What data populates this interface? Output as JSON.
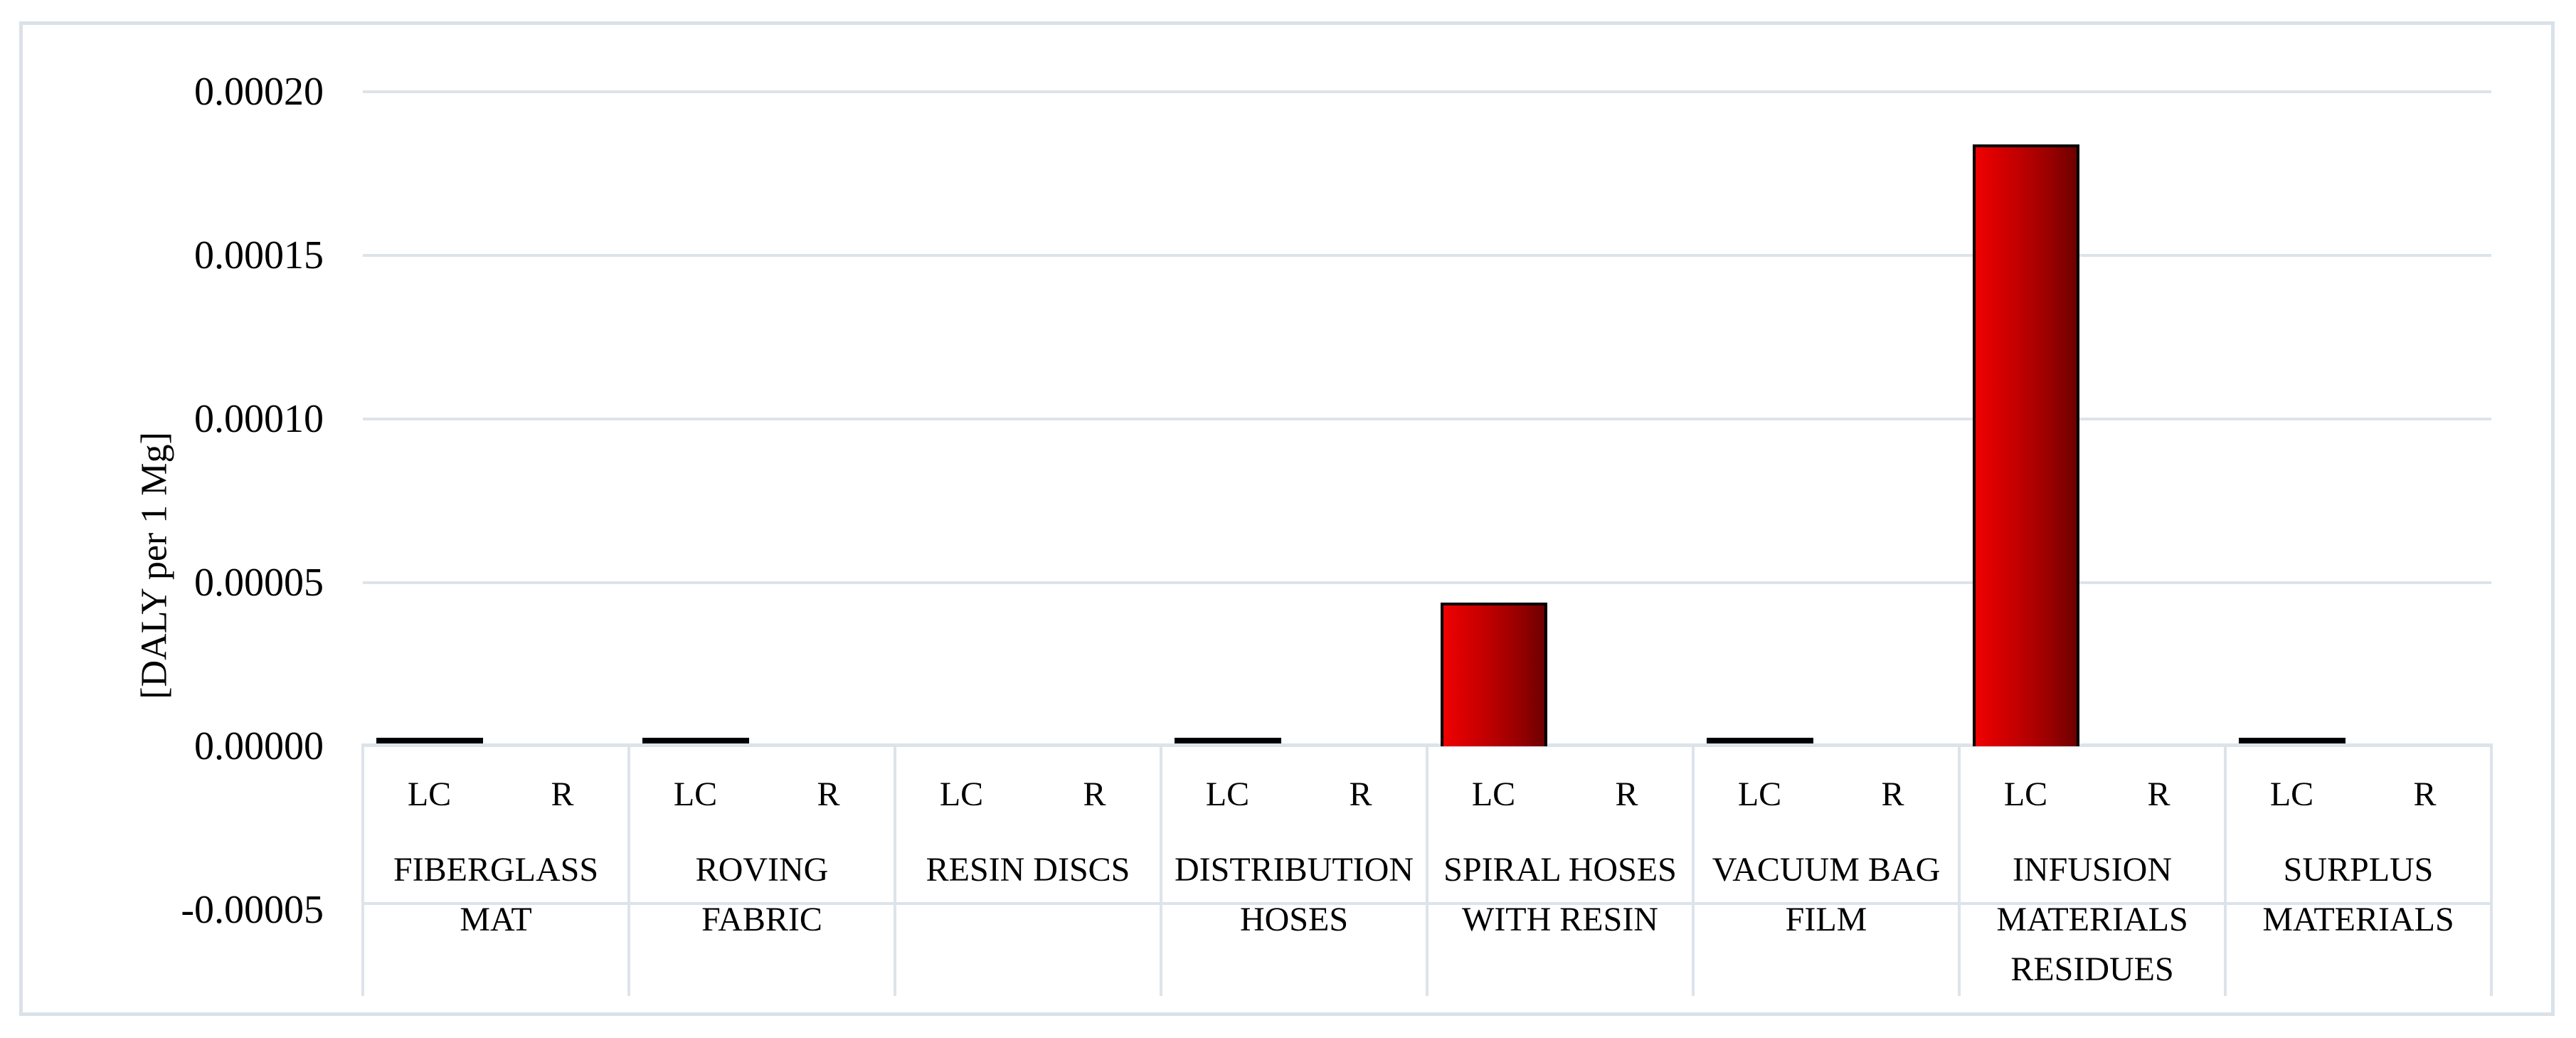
{
  "y_axis": {
    "title": "[DALY per 1 Mg]",
    "ticks": [
      {
        "label": "0.00020",
        "value": 0.0002
      },
      {
        "label": "0.00015",
        "value": 0.00015
      },
      {
        "label": "0.00010",
        "value": 0.0001
      },
      {
        "label": "0.00005",
        "value": 5e-05
      },
      {
        "label": "0.00000",
        "value": 0.0
      },
      {
        "label": "-0.00005",
        "value": -5e-05
      }
    ]
  },
  "x_axis": {
    "sub_labels": [
      "LC",
      "R"
    ],
    "categories": [
      {
        "name": "FIBERGLASS MAT",
        "lines": [
          "FIBERGLASS",
          "MAT"
        ]
      },
      {
        "name": "ROVING FABRIC",
        "lines": [
          "ROVING",
          "FABRIC"
        ]
      },
      {
        "name": "RESIN DISCS",
        "lines": [
          "RESIN DISCS"
        ]
      },
      {
        "name": "DISTRIBUTION HOSES",
        "lines": [
          "DISTRIBUTION",
          "HOSES"
        ]
      },
      {
        "name": "SPIRAL HOSES WITH RESIN",
        "lines": [
          "SPIRAL HOSES",
          "WITH RESIN"
        ]
      },
      {
        "name": "VACUUM BAG FILM",
        "lines": [
          "VACUUM BAG",
          "FILM"
        ]
      },
      {
        "name": "INFUSION MATERIALS RESIDUES",
        "lines": [
          "INFUSION",
          "MATERIALS",
          "RESIDUES"
        ]
      },
      {
        "name": "SURPLUS MATERIALS",
        "lines": [
          "SURPLUS",
          "MATERIALS"
        ]
      }
    ]
  },
  "chart_data": {
    "type": "bar",
    "title": "",
    "xlabel": "",
    "ylabel": "[DALY per 1 Mg]",
    "ylim": [
      -5e-05,
      0.0002
    ],
    "gridline_step": 5e-05,
    "grid": true,
    "legend": false,
    "categories": [
      "FIBERGLASS MAT",
      "ROVING FABRIC",
      "RESIN DISCS",
      "DISTRIBUTION HOSES",
      "SPIRAL HOSES WITH RESIN",
      "VACUUM BAG FILM",
      "INFUSION MATERIALS RESIDUES",
      "SURPLUS MATERIALS"
    ],
    "sub_categories": [
      "LC",
      "R"
    ],
    "series": [
      {
        "name": "LC",
        "values": [
          1e-06,
          1e-06,
          0,
          1e-06,
          4.4e-05,
          1e-06,
          0.000184,
          1e-06
        ]
      },
      {
        "name": "R",
        "values": [
          0,
          0,
          0,
          0,
          0,
          0,
          0,
          0
        ]
      }
    ],
    "colors": {
      "bar_fill_left": "#ef0101",
      "bar_fill_right": "#6e0000",
      "bar_outline": "#000000",
      "gridline": "#dce3eb",
      "frame": "#dae1e9",
      "text": "#000000"
    }
  }
}
